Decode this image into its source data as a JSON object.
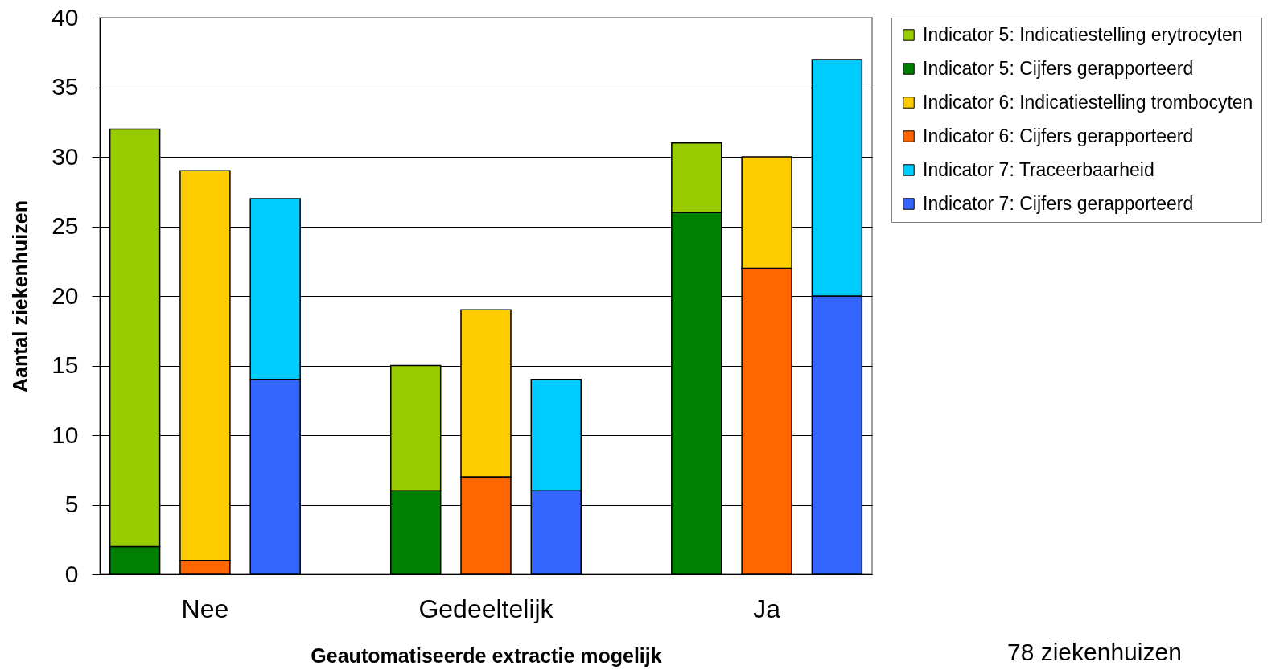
{
  "chart_data": {
    "type": "bar",
    "xlabel": "Geautomatiseerde extractie mogelijk",
    "ylabel": "Aantal ziekenhuizen",
    "categories": [
      null,
      "Nee",
      null,
      null,
      null,
      "Gedeeltelijk",
      null,
      null,
      null,
      "Ja",
      null
    ],
    "series": [
      {
        "name": "Indicator 5: Cijfers gerapporteerd",
        "color": "#008000",
        "values": [
          2,
          null,
          null,
          null,
          6,
          null,
          null,
          null,
          26,
          null,
          null
        ]
      },
      {
        "name": "Indicator 5: Indicatiestelling erytrocyten",
        "color": "#99cc00",
        "values": [
          30,
          null,
          null,
          null,
          9,
          null,
          null,
          null,
          5,
          null,
          null
        ]
      },
      {
        "name": "Indicator 6: Cijfers gerapporteerd",
        "color": "#ff6600",
        "values": [
          null,
          1,
          null,
          null,
          null,
          7,
          null,
          null,
          null,
          22,
          null
        ]
      },
      {
        "name": "Indicator 6: Indicatiestelling trombocyten",
        "color": "#ffcc00",
        "values": [
          null,
          28,
          null,
          null,
          null,
          12,
          null,
          null,
          null,
          8,
          null
        ]
      },
      {
        "name": "Indicator 7: Cijfers gerapporteerd",
        "color": "#3366ff",
        "values": [
          null,
          null,
          14,
          null,
          null,
          null,
          6,
          null,
          null,
          null,
          20
        ]
      },
      {
        "name": "Indicator 7: Traceerbaarheid",
        "color": "#00ccff",
        "values": [
          null,
          null,
          13,
          null,
          null,
          null,
          8,
          null,
          null,
          null,
          17
        ]
      }
    ],
    "stacked": true,
    "ylim": [
      0,
      40
    ],
    "yticks": [
      0,
      5,
      10,
      15,
      20,
      25,
      30,
      35,
      40
    ],
    "grid": "y",
    "legend": "right",
    "annotations": [
      "78 ziekenhuizen"
    ]
  }
}
